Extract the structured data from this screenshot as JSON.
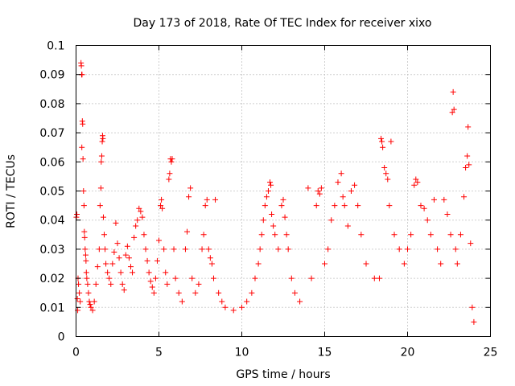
{
  "chart_data": {
    "type": "scatter",
    "title": "Day 173 of 2018, Rate Of TEC Index for receiver xixo",
    "xlabel": "GPS time / hours",
    "ylabel": "ROTI / TECUs",
    "xlim": [
      0,
      25
    ],
    "ylim": [
      0,
      0.1
    ],
    "x_ticks": [
      0,
      5,
      10,
      15,
      20,
      25
    ],
    "x_tick_labels": [
      "0",
      "5",
      "10",
      "15",
      "20",
      "25"
    ],
    "y_ticks": [
      0,
      0.01,
      0.02,
      0.03,
      0.04,
      0.05,
      0.06,
      0.07,
      0.08,
      0.09,
      0.1
    ],
    "y_tick_labels": [
      "0",
      "0.01",
      "0.02",
      "0.03",
      "0.04",
      "0.05",
      "0.06",
      "0.07",
      "0.08",
      "0.09",
      "0.1"
    ],
    "grid": true,
    "marker": "+",
    "marker_color": "#ff0000",
    "series": [
      {
        "name": "ROTI",
        "points": [
          [
            0.02,
            0.041
          ],
          [
            0.05,
            0.042
          ],
          [
            0.08,
            0.013
          ],
          [
            0.1,
            0.009
          ],
          [
            0.12,
            0.02
          ],
          [
            0.15,
            0.018
          ],
          [
            0.2,
            0.015
          ],
          [
            0.25,
            0.012
          ],
          [
            0.3,
            0.094
          ],
          [
            0.32,
            0.093
          ],
          [
            0.34,
            0.09
          ],
          [
            0.36,
            0.09
          ],
          [
            0.38,
            0.074
          ],
          [
            0.4,
            0.073
          ],
          [
            0.35,
            0.065
          ],
          [
            0.42,
            0.061
          ],
          [
            0.45,
            0.05
          ],
          [
            0.48,
            0.045
          ],
          [
            0.5,
            0.036
          ],
          [
            0.52,
            0.034
          ],
          [
            0.55,
            0.03
          ],
          [
            0.58,
            0.028
          ],
          [
            0.6,
            0.026
          ],
          [
            0.62,
            0.022
          ],
          [
            0.65,
            0.02
          ],
          [
            0.7,
            0.018
          ],
          [
            0.75,
            0.015
          ],
          [
            0.8,
            0.012
          ],
          [
            0.85,
            0.011
          ],
          [
            0.9,
            0.01
          ],
          [
            1.0,
            0.009
          ],
          [
            1.1,
            0.012
          ],
          [
            1.2,
            0.018
          ],
          [
            1.3,
            0.024
          ],
          [
            1.4,
            0.03
          ],
          [
            1.45,
            0.045
          ],
          [
            1.5,
            0.051
          ],
          [
            1.52,
            0.06
          ],
          [
            1.55,
            0.062
          ],
          [
            1.58,
            0.067
          ],
          [
            1.6,
            0.069
          ],
          [
            1.62,
            0.068
          ],
          [
            1.65,
            0.041
          ],
          [
            1.7,
            0.035
          ],
          [
            1.75,
            0.03
          ],
          [
            1.8,
            0.025
          ],
          [
            1.9,
            0.022
          ],
          [
            2.0,
            0.02
          ],
          [
            2.1,
            0.018
          ],
          [
            2.2,
            0.025
          ],
          [
            2.3,
            0.029
          ],
          [
            2.4,
            0.039
          ],
          [
            2.5,
            0.032
          ],
          [
            2.6,
            0.027
          ],
          [
            2.7,
            0.022
          ],
          [
            2.8,
            0.018
          ],
          [
            2.9,
            0.016
          ],
          [
            3.0,
            0.028
          ],
          [
            3.1,
            0.031
          ],
          [
            3.2,
            0.027
          ],
          [
            3.3,
            0.024
          ],
          [
            3.4,
            0.022
          ],
          [
            3.5,
            0.034
          ],
          [
            3.6,
            0.038
          ],
          [
            3.7,
            0.04
          ],
          [
            3.8,
            0.044
          ],
          [
            3.9,
            0.043
          ],
          [
            4.0,
            0.041
          ],
          [
            4.1,
            0.035
          ],
          [
            4.2,
            0.03
          ],
          [
            4.3,
            0.026
          ],
          [
            4.4,
            0.022
          ],
          [
            4.5,
            0.019
          ],
          [
            4.6,
            0.017
          ],
          [
            4.7,
            0.015
          ],
          [
            4.8,
            0.02
          ],
          [
            4.9,
            0.026
          ],
          [
            5.0,
            0.033
          ],
          [
            5.1,
            0.045
          ],
          [
            5.15,
            0.047
          ],
          [
            5.2,
            0.044
          ],
          [
            5.3,
            0.03
          ],
          [
            5.4,
            0.022
          ],
          [
            5.5,
            0.018
          ],
          [
            5.6,
            0.054
          ],
          [
            5.65,
            0.056
          ],
          [
            5.7,
            0.061
          ],
          [
            5.75,
            0.06
          ],
          [
            5.8,
            0.061
          ],
          [
            5.9,
            0.03
          ],
          [
            6.0,
            0.02
          ],
          [
            6.2,
            0.015
          ],
          [
            6.4,
            0.012
          ],
          [
            6.6,
            0.03
          ],
          [
            6.7,
            0.036
          ],
          [
            6.8,
            0.048
          ],
          [
            6.9,
            0.051
          ],
          [
            7.0,
            0.02
          ],
          [
            7.2,
            0.015
          ],
          [
            7.4,
            0.018
          ],
          [
            7.6,
            0.03
          ],
          [
            7.7,
            0.035
          ],
          [
            7.8,
            0.045
          ],
          [
            7.9,
            0.047
          ],
          [
            8.0,
            0.03
          ],
          [
            8.1,
            0.027
          ],
          [
            8.2,
            0.025
          ],
          [
            8.3,
            0.02
          ],
          [
            8.4,
            0.047
          ],
          [
            8.6,
            0.015
          ],
          [
            8.8,
            0.012
          ],
          [
            9.0,
            0.01
          ],
          [
            9.5,
            0.009
          ],
          [
            10.0,
            0.01
          ],
          [
            10.3,
            0.012
          ],
          [
            10.6,
            0.015
          ],
          [
            10.8,
            0.02
          ],
          [
            11.0,
            0.025
          ],
          [
            11.1,
            0.03
          ],
          [
            11.2,
            0.035
          ],
          [
            11.3,
            0.04
          ],
          [
            11.4,
            0.045
          ],
          [
            11.5,
            0.048
          ],
          [
            11.6,
            0.05
          ],
          [
            11.7,
            0.053
          ],
          [
            11.75,
            0.052
          ],
          [
            11.8,
            0.042
          ],
          [
            11.9,
            0.038
          ],
          [
            12.0,
            0.035
          ],
          [
            12.2,
            0.03
          ],
          [
            12.4,
            0.045
          ],
          [
            12.5,
            0.047
          ],
          [
            12.6,
            0.041
          ],
          [
            12.7,
            0.035
          ],
          [
            12.8,
            0.03
          ],
          [
            13.0,
            0.02
          ],
          [
            13.2,
            0.015
          ],
          [
            13.5,
            0.012
          ],
          [
            14.0,
            0.051
          ],
          [
            14.2,
            0.02
          ],
          [
            14.5,
            0.045
          ],
          [
            14.6,
            0.05
          ],
          [
            14.7,
            0.049
          ],
          [
            14.8,
            0.051
          ],
          [
            15.0,
            0.025
          ],
          [
            15.2,
            0.03
          ],
          [
            15.4,
            0.04
          ],
          [
            15.6,
            0.045
          ],
          [
            15.8,
            0.053
          ],
          [
            16.0,
            0.056
          ],
          [
            16.1,
            0.048
          ],
          [
            16.2,
            0.045
          ],
          [
            16.4,
            0.038
          ],
          [
            16.6,
            0.05
          ],
          [
            16.8,
            0.052
          ],
          [
            17.0,
            0.045
          ],
          [
            17.2,
            0.035
          ],
          [
            17.5,
            0.025
          ],
          [
            18.0,
            0.02
          ],
          [
            18.3,
            0.02
          ],
          [
            18.4,
            0.068
          ],
          [
            18.45,
            0.067
          ],
          [
            18.5,
            0.065
          ],
          [
            18.6,
            0.058
          ],
          [
            18.7,
            0.056
          ],
          [
            18.8,
            0.054
          ],
          [
            18.9,
            0.045
          ],
          [
            19.0,
            0.067
          ],
          [
            19.2,
            0.035
          ],
          [
            19.5,
            0.03
          ],
          [
            19.8,
            0.025
          ],
          [
            20.0,
            0.03
          ],
          [
            20.2,
            0.035
          ],
          [
            20.4,
            0.052
          ],
          [
            20.5,
            0.054
          ],
          [
            20.6,
            0.053
          ],
          [
            20.8,
            0.045
          ],
          [
            21.0,
            0.044
          ],
          [
            21.2,
            0.04
          ],
          [
            21.4,
            0.035
          ],
          [
            21.6,
            0.047
          ],
          [
            21.8,
            0.03
          ],
          [
            22.0,
            0.025
          ],
          [
            22.2,
            0.047
          ],
          [
            22.4,
            0.042
          ],
          [
            22.6,
            0.035
          ],
          [
            22.7,
            0.077
          ],
          [
            22.75,
            0.084
          ],
          [
            22.8,
            0.078
          ],
          [
            22.9,
            0.03
          ],
          [
            23.0,
            0.025
          ],
          [
            23.2,
            0.035
          ],
          [
            23.4,
            0.048
          ],
          [
            23.5,
            0.058
          ],
          [
            23.6,
            0.062
          ],
          [
            23.65,
            0.072
          ],
          [
            23.7,
            0.059
          ],
          [
            23.8,
            0.032
          ],
          [
            23.9,
            0.01
          ],
          [
            24.0,
            0.005
          ]
        ]
      }
    ]
  }
}
